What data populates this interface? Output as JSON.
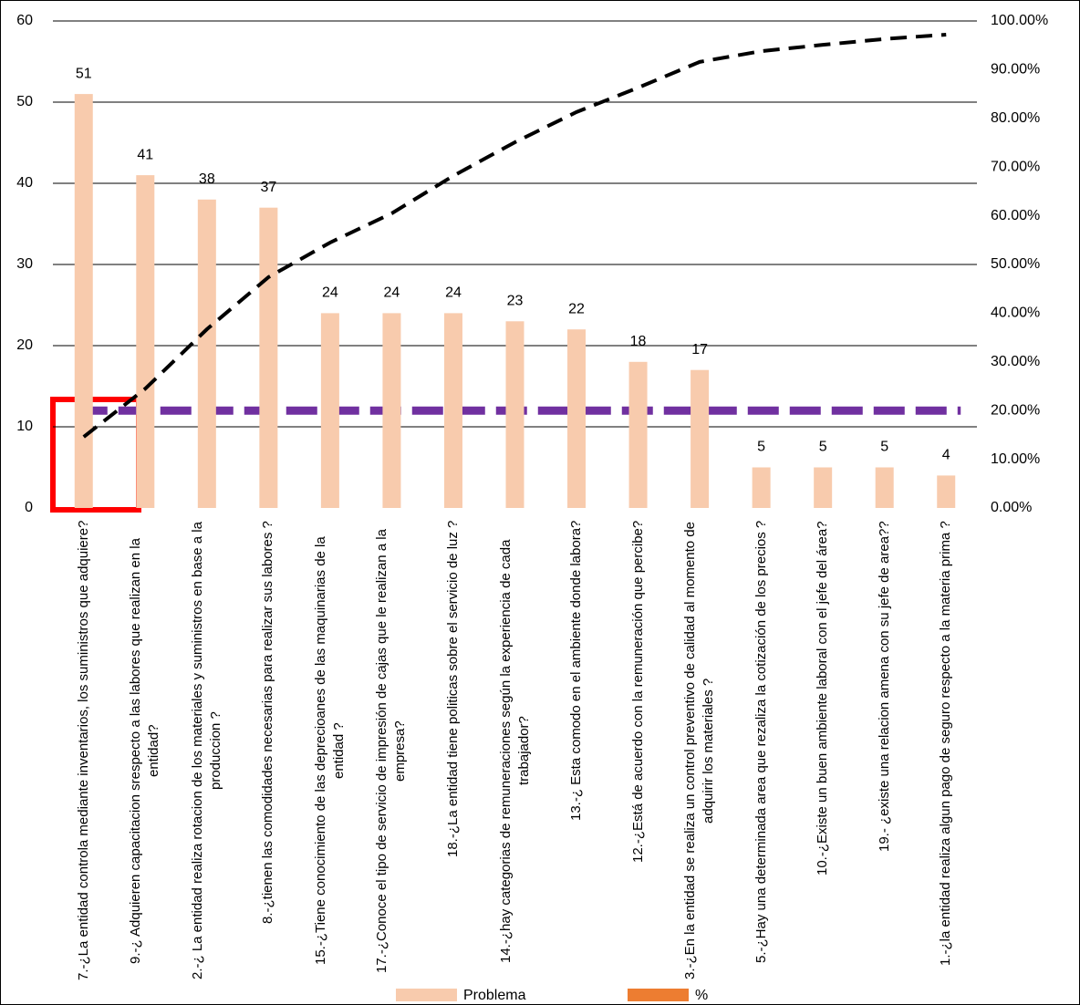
{
  "chart_data": {
    "type": "bar",
    "categories": [
      "7.-¿La entidad controla mediante inventarios, los suministros que adquiere?",
      "9.-¿ Adquieren capacitacion srespecto a las labores que realizan en la entidad?",
      "2.-¿ La entidad realiza rotacion de los materiales y suministros en base a la produccion ?",
      "8.-¿tienen las comodidades necesarias para realizar sus labores ?",
      "15.-¿Tiene conocimiento de las deprecioanes de las maquinarias de la entidad ?",
      "17.-¿Conoce el tipo de servicio de impresión de cajas que le realizan a la empresa?",
      "18.-¿La entidad tiene politicas sobre el servicio de luz ?",
      "14.-¿hay categorias de remuneraciones según la experiencia de cada trabajador?",
      "13.-¿ Esta comodo en el ambiente donde labora?",
      "12.-¿Está de acuerdo con la remuneración que percibe?",
      "3.-¿En la entidad se realiza un control preventivo de calidad al momento de adquirir los materiales ?",
      "5.-¿Hay una determinada area que rezaliza la cotización de los precios ?",
      "10.-¿Existe un buen ambiente laboral con el jefe del área?",
      "19.- ¿existe una relacion amena con su jefe de area??",
      "1.-¿la entidad realiza algun pago de seguro respecto a la materia prima ?"
    ],
    "series": [
      {
        "name": "Problema",
        "type": "bar",
        "color": "#f8cbad",
        "values": [
          51,
          41,
          38,
          37,
          24,
          24,
          24,
          23,
          22,
          18,
          17,
          5,
          5,
          5,
          4
        ]
      },
      {
        "name": "%",
        "type": "line",
        "axis": "y2",
        "color": "#000000",
        "legend_color": "#ed7d31",
        "dashed": true,
        "values": [
          14.6,
          24.5,
          36.7,
          47.4,
          54.5,
          60.5,
          68.2,
          75.1,
          81.3,
          86.3,
          91.6,
          93.8,
          95.1,
          96.3,
          97.2
        ]
      }
    ],
    "reference_line": {
      "value": 20,
      "axis": "y2",
      "color": "#7030a0"
    },
    "ylim": [
      0,
      60
    ],
    "yticks": [
      0,
      10,
      20,
      30,
      40,
      50,
      60
    ],
    "y2lim": [
      0,
      100
    ],
    "y2ticks": [
      {
        "value": 0,
        "label": "0.00%"
      },
      {
        "value": 10,
        "label": "10.00%"
      },
      {
        "value": 20,
        "label": "20.00%"
      },
      {
        "value": 30,
        "label": "30.00%"
      },
      {
        "value": 40,
        "label": "40.00%"
      },
      {
        "value": 50,
        "label": "50.00%"
      },
      {
        "value": 60,
        "label": "60.00%"
      },
      {
        "value": 70,
        "label": "70.00%"
      },
      {
        "value": 80,
        "label": "80.00%"
      },
      {
        "value": 90,
        "label": "90.00%"
      },
      {
        "value": 100,
        "label": "100.00%"
      }
    ],
    "grid": true,
    "legend": "bottom"
  }
}
